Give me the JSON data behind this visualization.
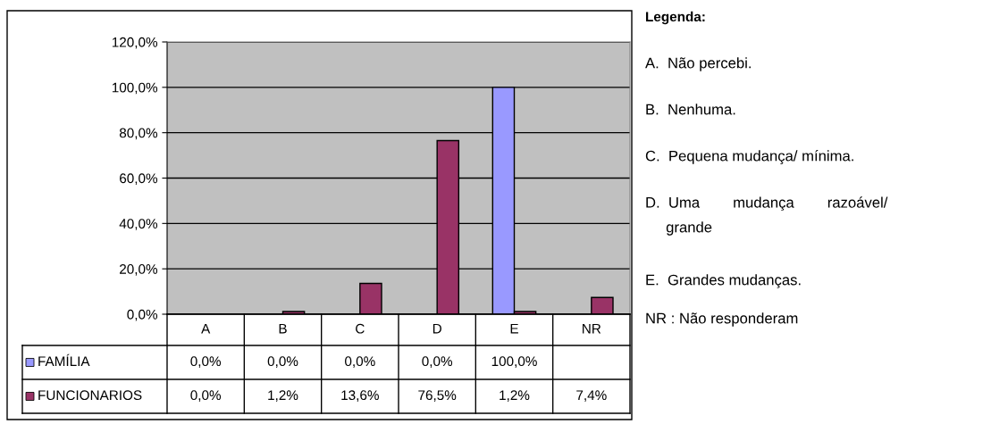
{
  "chart_data": {
    "type": "bar",
    "categories": [
      "A",
      "B",
      "C",
      "D",
      "E",
      "NR"
    ],
    "series": [
      {
        "name": "FAMÍLIA",
        "color": "#9999ff",
        "values": [
          0.0,
          0.0,
          0.0,
          0.0,
          100.0,
          null
        ],
        "value_labels": [
          "0,0%",
          "0,0%",
          "0,0%",
          "0,0%",
          "100,0%",
          null
        ]
      },
      {
        "name": "FUNCIONARIOS",
        "color": "#993366",
        "values": [
          0.0,
          1.2,
          13.6,
          76.5,
          1.2,
          7.4
        ],
        "value_labels": [
          "0,0%",
          "1,2%",
          "13,6%",
          "76,5%",
          "1,2%",
          "7,4%"
        ]
      }
    ],
    "ylim": [
      0,
      120
    ],
    "yticks": [
      {
        "value": 0,
        "label": "0,0%"
      },
      {
        "value": 20,
        "label": "20,0%"
      },
      {
        "value": 40,
        "label": "40,0%"
      },
      {
        "value": 60,
        "label": "60,0%"
      },
      {
        "value": 80,
        "label": "80,0%"
      },
      {
        "value": 100,
        "label": "100,0%"
      },
      {
        "value": 120,
        "label": "120,0%"
      }
    ],
    "grid": "y",
    "legend": "bottom",
    "annotations": [
      "Legenda:",
      "A.  Não percebi.",
      "B.  Nenhuma.",
      "C.  Pequena mudança/ mínima.",
      "D.  Uma        mudança        razoável/\n     grande",
      "E.  Grandes mudanças.",
      "NR : Não responderam"
    ]
  }
}
